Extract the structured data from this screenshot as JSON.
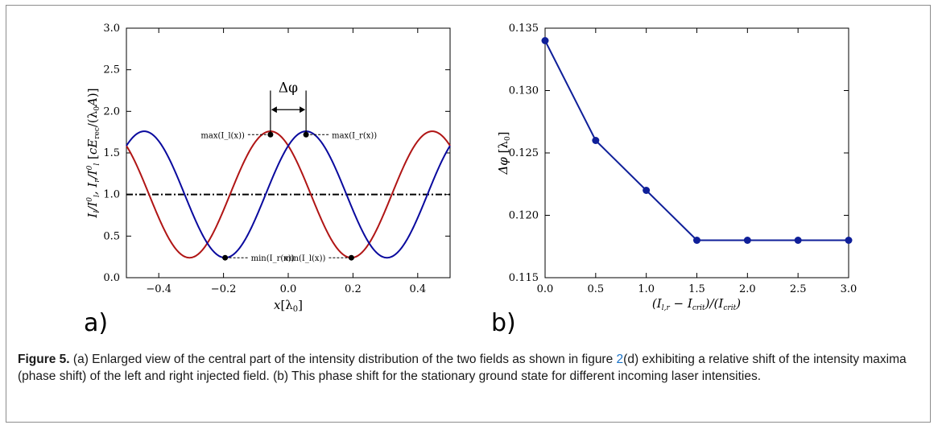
{
  "caption": {
    "label": "Figure 5.",
    "text_part1": " (a) Enlarged view of the central part of the intensity distribution of the two fields as shown in figure ",
    "ref": "2",
    "text_part2": "(d) exhibiting a relative shift of the intensity maxima (phase shift) of the left and right injected field. (b) This phase shift for the stationary ground state for different incoming laser intensities."
  },
  "chart_data": [
    {
      "panel": "a)",
      "type": "line",
      "xlabel": "x[λ0]",
      "ylabel": "I_l/I_l^0, I_r/I_l^0 [cE_rec/(λ0 A)]",
      "xlim": [
        -0.5,
        0.5
      ],
      "ylim": [
        0.0,
        3.0
      ],
      "xticks": [
        "−0.4",
        "−0.2",
        "0.0",
        "0.2",
        "0.4"
      ],
      "xtick_values": [
        -0.4,
        -0.2,
        0.0,
        0.2,
        0.4
      ],
      "yticks": [
        "0.0",
        "0.5",
        "1.0",
        "1.5",
        "2.0",
        "2.5",
        "3.0"
      ],
      "ytick_values": [
        0.0,
        0.5,
        1.0,
        1.5,
        2.0,
        2.5,
        3.0
      ],
      "series": [
        {
          "color": "#b01515",
          "mean": 1.0,
          "amplitude": 0.76,
          "period": 0.5,
          "peak_x": -0.055
        },
        {
          "color": "#0a0a9e",
          "mean": 1.0,
          "amplitude": 0.76,
          "period": 0.5,
          "peak_x": 0.055
        }
      ],
      "reference_line": {
        "y": 1.0,
        "style": "dash-dot"
      },
      "markers": [
        {
          "x": -0.055,
          "y": 1.72,
          "label": "max(I_l(x))"
        },
        {
          "x": 0.055,
          "y": 1.72,
          "label": "max(I_r(x))"
        },
        {
          "x": -0.195,
          "y": 0.24,
          "label": "min(I_r(x))"
        },
        {
          "x": 0.195,
          "y": 0.24,
          "label": "min(I_l(x))"
        }
      ],
      "annotation": {
        "label": "Δφ",
        "from_x": -0.055,
        "to_x": 0.055
      }
    },
    {
      "panel": "b)",
      "type": "line",
      "xlabel": "(I_l,r − I_crit)/(I_crit)",
      "ylabel": "Δφ [λ0]",
      "xlim": [
        0.0,
        3.0
      ],
      "ylim": [
        0.115,
        0.135
      ],
      "xticks": [
        "0.0",
        "0.5",
        "1.0",
        "1.5",
        "2.0",
        "2.5",
        "3.0"
      ],
      "xtick_values": [
        0.0,
        0.5,
        1.0,
        1.5,
        2.0,
        2.5,
        3.0
      ],
      "yticks": [
        "0.115",
        "0.120",
        "0.125",
        "0.130",
        "0.135"
      ],
      "ytick_values": [
        0.115,
        0.12,
        0.125,
        0.13,
        0.135
      ],
      "color": "#0f1f99",
      "x": [
        0.0,
        0.5,
        1.0,
        1.5,
        2.0,
        2.5,
        3.0
      ],
      "y": [
        0.134,
        0.126,
        0.122,
        0.118,
        0.118,
        0.118,
        0.118
      ]
    }
  ]
}
